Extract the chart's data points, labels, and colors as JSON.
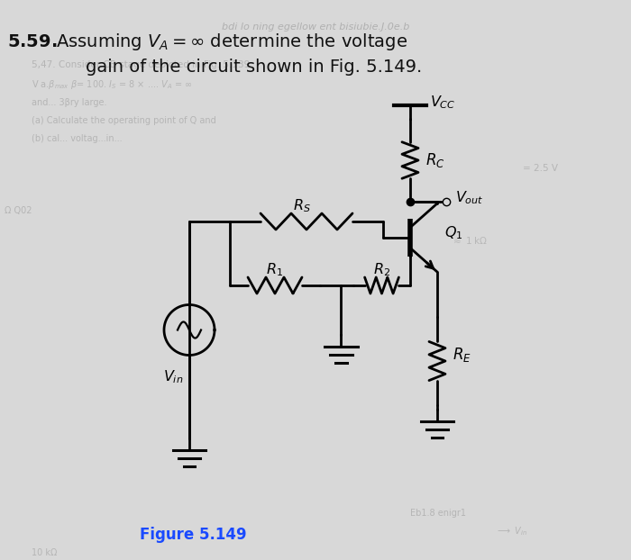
{
  "bg_color": "#d8d8d8",
  "circuit_color": "#000000",
  "figure_label_color": "#1a4aff",
  "title_bold": "5.59.",
  "title_rest": " Assuming ",
  "title_line2": "gain of the circuit shown in Fig. 5.149.",
  "figure_label": "Figure 5.149",
  "bg_text_color": "#aaaaaa",
  "lw": 2.0
}
